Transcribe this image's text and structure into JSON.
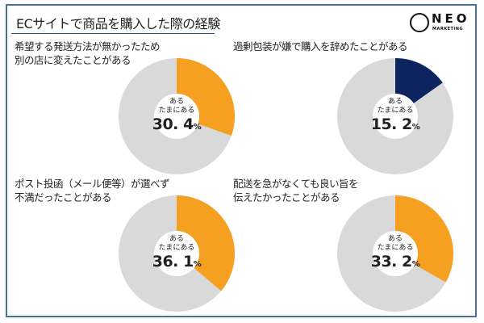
{
  "title": "ECサイトで商品を購入した際の経験",
  "logo": {
    "name": "NEO",
    "sub": "MARKETING"
  },
  "colors": {
    "orange": "#f5a020",
    "navy": "#0d2460",
    "gray": "#d9d9d9"
  },
  "chart_data": [
    {
      "type": "pie",
      "title": "希望する発送方法が無かったため別の店に変えたことがある",
      "title_lines": [
        "希望する発送方法が無かったため",
        "別の店に変えたことがある"
      ],
      "label_1": "ある",
      "label_2": "たまにある",
      "value": 30.4,
      "value_text": "30. 4",
      "unit": "%",
      "color": "#f5a020"
    },
    {
      "type": "pie",
      "title": "過剰包装が嫌で購入を辞めたことがある",
      "title_lines": [
        "過剰包装が嫌で購入を辞めたことがある",
        ""
      ],
      "label_1": "ある",
      "label_2": "たまにある",
      "value": 15.2,
      "value_text": "15. 2",
      "unit": "%",
      "color": "#0d2460"
    },
    {
      "type": "pie",
      "title": "ポスト投函（メール便等）が選べず不満だったことがある",
      "title_lines": [
        "ポスト投函（メール便等）が選べず",
        "不満だったことがある"
      ],
      "label_1": "ある",
      "label_2": "たまにある",
      "value": 36.1,
      "value_text": "36. 1",
      "unit": "%",
      "color": "#f5a020"
    },
    {
      "type": "pie",
      "title": "配送を急がなくても良い旨を伝えたかったことがある",
      "title_lines": [
        "配送を急がなくても良い旨を",
        "伝えたかったことがある"
      ],
      "label_1": "ある",
      "label_2": "たまにある",
      "value": 33.2,
      "value_text": "33. 2",
      "unit": "%",
      "color": "#f5a020"
    }
  ]
}
